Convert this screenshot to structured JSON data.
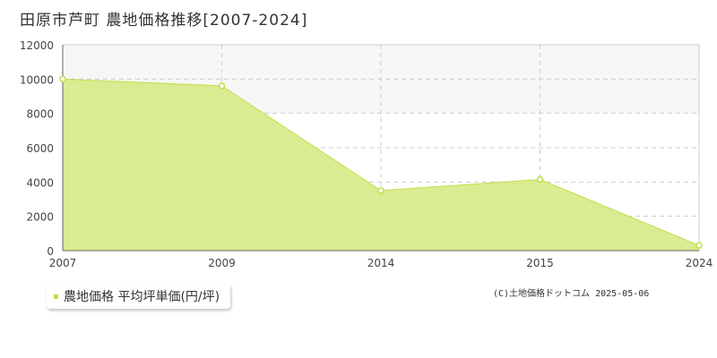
{
  "title": "田原市芦町 農地価格推移[2007-2024]",
  "credit": "(C)土地価格ドットコム 2025-05-06",
  "legend": {
    "label": "農地価格 平均坪単価(円/坪)",
    "position": "bottom-left"
  },
  "colors": {
    "area_fill": "#d9ec91",
    "area_stroke": "#bfe04a",
    "marker_stroke": "#bfe04a",
    "grid": "#cccccc",
    "plot_bg_band": "#f7f6f6"
  },
  "chart_data": {
    "type": "area",
    "title": "田原市芦町 農地価格推移[2007-2024]",
    "xlabel": "",
    "ylabel": "",
    "categories": [
      "2007",
      "2009",
      "2014",
      "2015",
      "2024"
    ],
    "series": [
      {
        "name": "農地価格 平均坪単価(円/坪)",
        "values": [
          10000,
          9600,
          3500,
          4150,
          300
        ]
      }
    ],
    "ylim": [
      0,
      12000
    ],
    "yticks": [
      0,
      2000,
      4000,
      6000,
      8000,
      10000,
      12000
    ],
    "grid": true,
    "legend": "bottom-left"
  }
}
